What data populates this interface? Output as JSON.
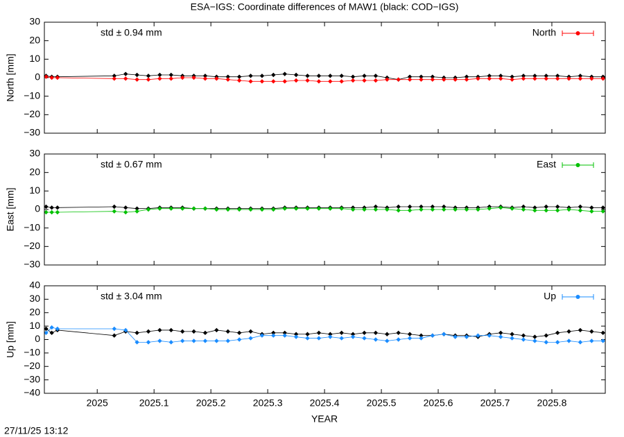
{
  "title": "ESA−IGS: Coordinate differences of MAW1 (black: COD−IGS)",
  "x_label": "YEAR",
  "timestamp": "27/11/25 13:12",
  "chart_data": [
    {
      "type": "scatter",
      "y_label": "North [mm]",
      "annotation": "std ± 0.94 mm",
      "x": [
        2024.91,
        2024.92,
        2024.93,
        2025.03,
        2025.05,
        2025.07,
        2025.09,
        2025.11,
        2025.13,
        2025.15,
        2025.17,
        2025.19,
        2025.21,
        2025.23,
        2025.25,
        2025.27,
        2025.29,
        2025.31,
        2025.33,
        2025.35,
        2025.37,
        2025.39,
        2025.41,
        2025.43,
        2025.45,
        2025.47,
        2025.49,
        2025.51,
        2025.53,
        2025.55,
        2025.57,
        2025.59,
        2025.61,
        2025.63,
        2025.65,
        2025.67,
        2025.69,
        2025.71,
        2025.73,
        2025.75,
        2025.77,
        2025.79,
        2025.81,
        2025.83,
        2025.85,
        2025.87,
        2025.89
      ],
      "series": [
        {
          "color": "#000000",
          "values": [
            1,
            0.5,
            0.5,
            1,
            2,
            1.5,
            1,
            1.5,
            1.5,
            1,
            1,
            1,
            0.5,
            0.5,
            0.5,
            1,
            1,
            1.5,
            2,
            1.5,
            1,
            1,
            1,
            1,
            0.5,
            1,
            1,
            0,
            -1,
            0.5,
            0.5,
            0.5,
            0,
            0,
            0.5,
            0.5,
            1,
            1,
            0.5,
            1,
            1,
            1,
            1,
            0.5,
            1,
            0.5,
            0.5
          ]
        },
        {
          "name": "North",
          "color": "#ff0000",
          "values": [
            0.5,
            0,
            0,
            -0.5,
            -0.5,
            -1,
            -1,
            -0.5,
            -0.5,
            0,
            0,
            -0.5,
            -0.5,
            -1,
            -1.5,
            -2,
            -2,
            -2,
            -2,
            -1.5,
            -1.5,
            -2,
            -2,
            -2,
            -1.5,
            -1.5,
            -1.5,
            -1,
            -1,
            -1,
            -1,
            -1,
            -1,
            -1,
            -1,
            -0.5,
            -0.5,
            -0.5,
            -1,
            -0.5,
            -0.5,
            -0.5,
            -0.5,
            -0.5,
            -0.5,
            -0.5,
            -0.5
          ]
        }
      ],
      "xlim": [
        2024.907,
        2025.894
      ],
      "xticks": [
        2025,
        2025.1,
        2025.2,
        2025.3,
        2025.4,
        2025.5,
        2025.6,
        2025.7,
        2025.8
      ],
      "ylim": [
        -30,
        30
      ],
      "yticks": [
        -30,
        -20,
        -10,
        0,
        10,
        20,
        30
      ],
      "legend": "upper right"
    },
    {
      "type": "scatter",
      "y_label": "East [mm]",
      "annotation": "std ± 0.67 mm",
      "x": [
        2024.91,
        2024.92,
        2024.93,
        2025.03,
        2025.05,
        2025.07,
        2025.09,
        2025.11,
        2025.13,
        2025.15,
        2025.17,
        2025.19,
        2025.21,
        2025.23,
        2025.25,
        2025.27,
        2025.29,
        2025.31,
        2025.33,
        2025.35,
        2025.37,
        2025.39,
        2025.41,
        2025.43,
        2025.45,
        2025.47,
        2025.49,
        2025.51,
        2025.53,
        2025.55,
        2025.57,
        2025.59,
        2025.61,
        2025.63,
        2025.65,
        2025.67,
        2025.69,
        2025.71,
        2025.73,
        2025.75,
        2025.77,
        2025.79,
        2025.81,
        2025.83,
        2025.85,
        2025.87,
        2025.89
      ],
      "series": [
        {
          "color": "#000000",
          "values": [
            1.5,
            1,
            1,
            1.5,
            1,
            0.5,
            0.5,
            1,
            1,
            1,
            0.5,
            0.5,
            0.5,
            0.5,
            0.5,
            0.5,
            0.5,
            0.5,
            1,
            1,
            1,
            1,
            1,
            1,
            1,
            1,
            1.5,
            1,
            1.5,
            1.5,
            1.5,
            1.5,
            1.5,
            1,
            1,
            1,
            1.5,
            1.5,
            1,
            1.5,
            1,
            1.5,
            1.5,
            1,
            1.5,
            1,
            1
          ]
        },
        {
          "name": "East",
          "color": "#00c000",
          "values": [
            -1.5,
            -1.5,
            -1.5,
            -1,
            -1.5,
            -1,
            0,
            0.5,
            0.5,
            0.5,
            0.5,
            0.5,
            0,
            0,
            0,
            0,
            0,
            0,
            0.5,
            0.5,
            0.5,
            0.5,
            0.5,
            0.5,
            0,
            0,
            0,
            0,
            -0.5,
            -0.5,
            0,
            0,
            0,
            0,
            0,
            0,
            0.5,
            1,
            0.5,
            0,
            -0.5,
            -0.5,
            -0.5,
            0,
            -0.5,
            -1,
            -1
          ]
        }
      ],
      "xlim": [
        2024.907,
        2025.894
      ],
      "xticks": [
        2025,
        2025.1,
        2025.2,
        2025.3,
        2025.4,
        2025.5,
        2025.6,
        2025.7,
        2025.8
      ],
      "ylim": [
        -30,
        30
      ],
      "yticks": [
        -30,
        -20,
        -10,
        0,
        10,
        20,
        30
      ],
      "legend": "upper right"
    },
    {
      "type": "scatter",
      "y_label": "Up [mm]",
      "annotation": "std ± 3.04 mm",
      "x": [
        2024.91,
        2024.92,
        2024.93,
        2025.03,
        2025.05,
        2025.07,
        2025.09,
        2025.11,
        2025.13,
        2025.15,
        2025.17,
        2025.19,
        2025.21,
        2025.23,
        2025.25,
        2025.27,
        2025.29,
        2025.31,
        2025.33,
        2025.35,
        2025.37,
        2025.39,
        2025.41,
        2025.43,
        2025.45,
        2025.47,
        2025.49,
        2025.51,
        2025.53,
        2025.55,
        2025.57,
        2025.59,
        2025.61,
        2025.63,
        2025.65,
        2025.67,
        2025.69,
        2025.71,
        2025.73,
        2025.75,
        2025.77,
        2025.79,
        2025.81,
        2025.83,
        2025.85,
        2025.87,
        2025.89
      ],
      "series": [
        {
          "color": "#000000",
          "values": [
            8,
            5,
            7,
            3,
            6,
            5,
            6,
            7,
            7,
            6,
            6,
            5,
            7,
            6,
            5,
            6,
            4,
            5,
            5,
            4,
            4,
            5,
            4,
            5,
            4,
            5,
            5,
            4,
            5,
            4,
            3,
            3,
            4,
            3,
            3,
            2,
            4,
            5,
            4,
            3,
            2,
            3,
            5,
            6,
            7,
            6,
            5
          ]
        },
        {
          "name": "Up",
          "color": "#1a8cff",
          "values": [
            5,
            9,
            8,
            8,
            7,
            -2,
            -2,
            -1,
            -2,
            -1,
            -1,
            -1,
            -1,
            -1,
            0,
            1,
            3,
            3,
            3,
            2,
            1,
            1,
            2,
            1,
            2,
            1,
            0,
            -1,
            0,
            1,
            1,
            3,
            4,
            2,
            2,
            3,
            3,
            2,
            1,
            0,
            -1,
            -2,
            -2,
            -1,
            -2,
            -1,
            -1
          ]
        }
      ],
      "xlim": [
        2024.907,
        2025.894
      ],
      "xticks": [
        2025,
        2025.1,
        2025.2,
        2025.3,
        2025.4,
        2025.5,
        2025.6,
        2025.7,
        2025.8
      ],
      "ylim": [
        -40,
        40
      ],
      "yticks": [
        -40,
        -30,
        -20,
        -10,
        0,
        10,
        20,
        30,
        40
      ],
      "legend": "upper right"
    }
  ]
}
